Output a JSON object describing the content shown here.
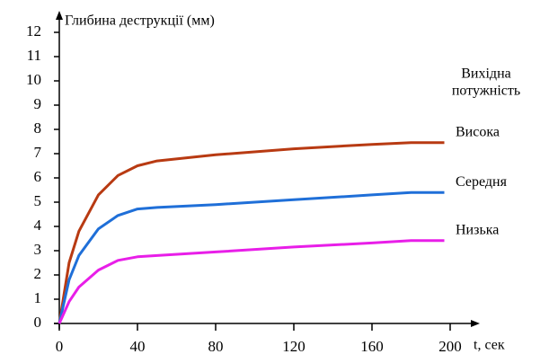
{
  "chart_data": {
    "type": "line",
    "y_label": "Глибина деструкції (мм)",
    "x_label": "t, сек",
    "legend_title": [
      "Вихідна",
      "потужність"
    ],
    "x": [
      0,
      5,
      10,
      20,
      30,
      40,
      50,
      80,
      120,
      160,
      180,
      197
    ],
    "series": [
      {
        "name": "Висока",
        "color": "#b83a12",
        "values": [
          0,
          2.5,
          3.8,
          5.3,
          6.1,
          6.5,
          6.7,
          6.95,
          7.2,
          7.38,
          7.45,
          7.45
        ]
      },
      {
        "name": "Середня",
        "color": "#1f6fd8",
        "values": [
          0,
          1.8,
          2.8,
          3.9,
          4.45,
          4.72,
          4.78,
          4.9,
          5.1,
          5.3,
          5.4,
          5.4
        ]
      },
      {
        "name": "Низька",
        "color": "#e81ee8",
        "values": [
          0,
          0.9,
          1.5,
          2.2,
          2.6,
          2.75,
          2.8,
          2.95,
          3.15,
          3.32,
          3.42,
          3.42
        ]
      }
    ],
    "xlim": [
      0,
      200
    ],
    "xticks": [
      0,
      40,
      80,
      120,
      160,
      200
    ],
    "ylim": [
      0,
      12
    ],
    "yticks": [
      0,
      1,
      2,
      3,
      4,
      5,
      6,
      7,
      8,
      9,
      10,
      11,
      12
    ]
  }
}
